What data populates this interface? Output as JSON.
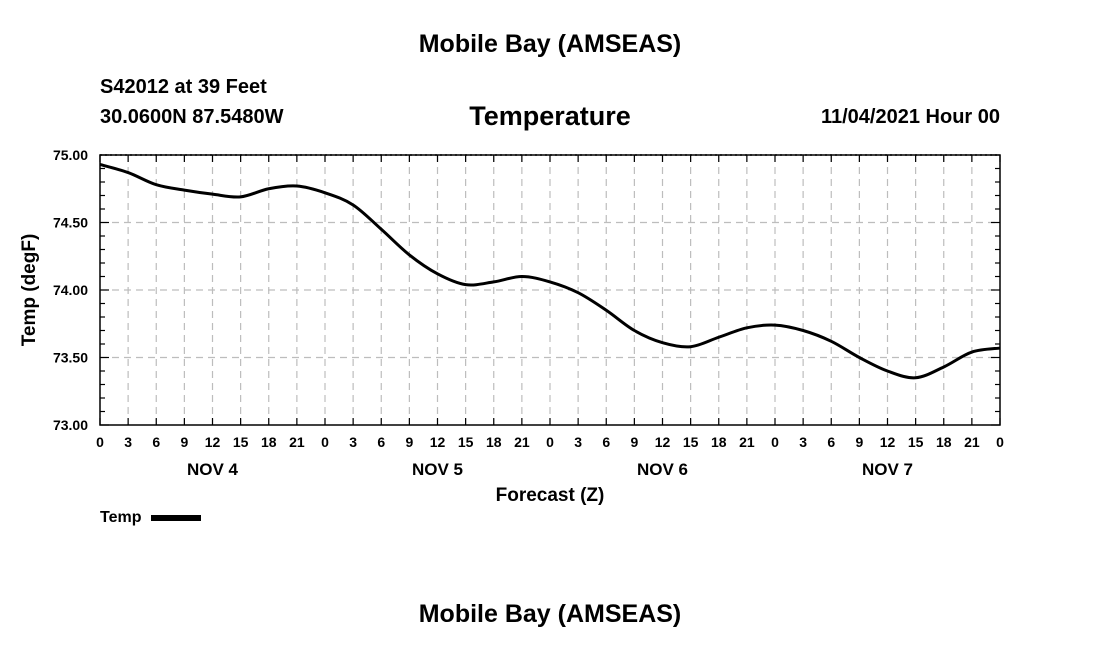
{
  "header": {
    "title": "Mobile Bay (AMSEAS)",
    "station": "S42012 at 39 Feet",
    "coords": "30.0600N  87.5480W",
    "chart_title": "Temperature",
    "datetime": "11/04/2021 Hour 00"
  },
  "footer": {
    "title": "Mobile Bay (AMSEAS)"
  },
  "chart_data": {
    "type": "line",
    "title": "Temperature",
    "xlabel": "Forecast (Z)",
    "ylabel": "Temp (degF)",
    "ylim": [
      73.0,
      75.0
    ],
    "xlim": [
      0,
      96
    ],
    "y_ticks": [
      "73.00",
      "73.50",
      "74.00",
      "74.50",
      "75.00"
    ],
    "x_tick_labels": [
      "0",
      "3",
      "6",
      "9",
      "12",
      "15",
      "18",
      "21",
      "0",
      "3",
      "6",
      "9",
      "12",
      "15",
      "18",
      "21",
      "0",
      "3",
      "6",
      "9",
      "12",
      "15",
      "18",
      "21",
      "0",
      "3",
      "6",
      "9",
      "12",
      "15",
      "18",
      "21",
      "0"
    ],
    "day_labels": [
      "NOV 4",
      "NOV 5",
      "NOV 6",
      "NOV 7"
    ],
    "grid": true,
    "legend_position": "bottom-left",
    "series": [
      {
        "name": "Temp",
        "color": "#000000",
        "x": [
          0,
          3,
          6,
          9,
          12,
          15,
          18,
          21,
          24,
          27,
          30,
          33,
          36,
          39,
          42,
          45,
          48,
          51,
          54,
          57,
          60,
          63,
          66,
          69,
          72,
          75,
          78,
          81,
          84,
          87,
          90,
          93,
          96
        ],
        "values": [
          74.93,
          74.87,
          74.78,
          74.74,
          74.71,
          74.69,
          74.75,
          74.77,
          74.72,
          74.63,
          74.45,
          74.26,
          74.12,
          74.04,
          74.06,
          74.1,
          74.06,
          73.98,
          73.85,
          73.7,
          73.61,
          73.58,
          73.65,
          73.72,
          73.74,
          73.7,
          73.62,
          73.5,
          73.4,
          73.35,
          73.43,
          73.54,
          73.57
        ]
      }
    ]
  }
}
